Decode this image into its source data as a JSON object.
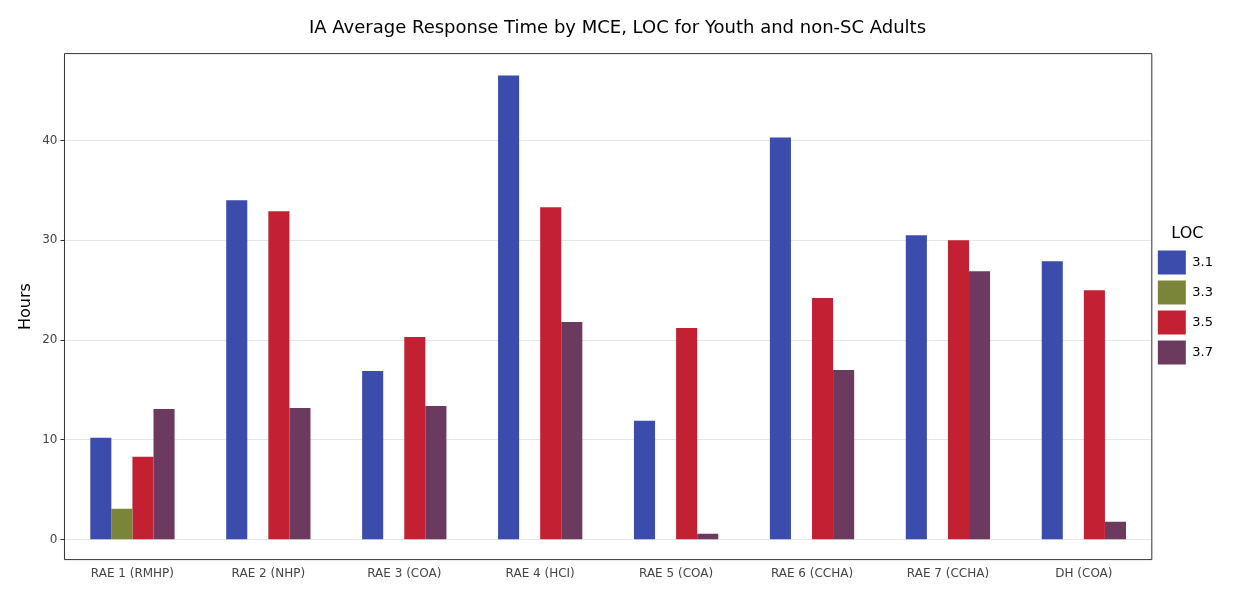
{
  "chart_data": {
    "type": "bar",
    "title": "IA Average Response Time by MCE, LOC for Youth and non-SC Adults",
    "ylabel": "Hours",
    "legend_title": "LOC",
    "legend": "right",
    "grid": true,
    "categories": [
      "RAE 1 (RMHP)",
      "RAE 2 (NHP)",
      "RAE 3 (COA)",
      "RAE 4 (HCI)",
      "RAE 5 (COA)",
      "RAE 6 (CCHA)",
      "RAE 7 (CCHA)",
      "DH (COA)"
    ],
    "ylim": [
      -2.0,
      48.7
    ],
    "yticks": [
      0,
      10,
      20,
      30,
      40
    ],
    "series": [
      {
        "name": "3.1",
        "color": "#3b4cad",
        "values": [
          10.2,
          34.0,
          16.9,
          46.5,
          11.9,
          40.3,
          30.5,
          27.9
        ]
      },
      {
        "name": "3.3",
        "color": "#7a853a",
        "values": [
          3.1,
          null,
          null,
          null,
          null,
          null,
          null,
          null
        ]
      },
      {
        "name": "3.5",
        "color": "#c42033",
        "values": [
          8.3,
          32.9,
          20.3,
          33.3,
          21.2,
          24.2,
          30.0,
          25.0
        ]
      },
      {
        "name": "3.7",
        "color": "#6b3a5e",
        "values": [
          13.1,
          13.2,
          13.4,
          21.8,
          0.6,
          17.0,
          26.9,
          1.8
        ]
      }
    ]
  }
}
